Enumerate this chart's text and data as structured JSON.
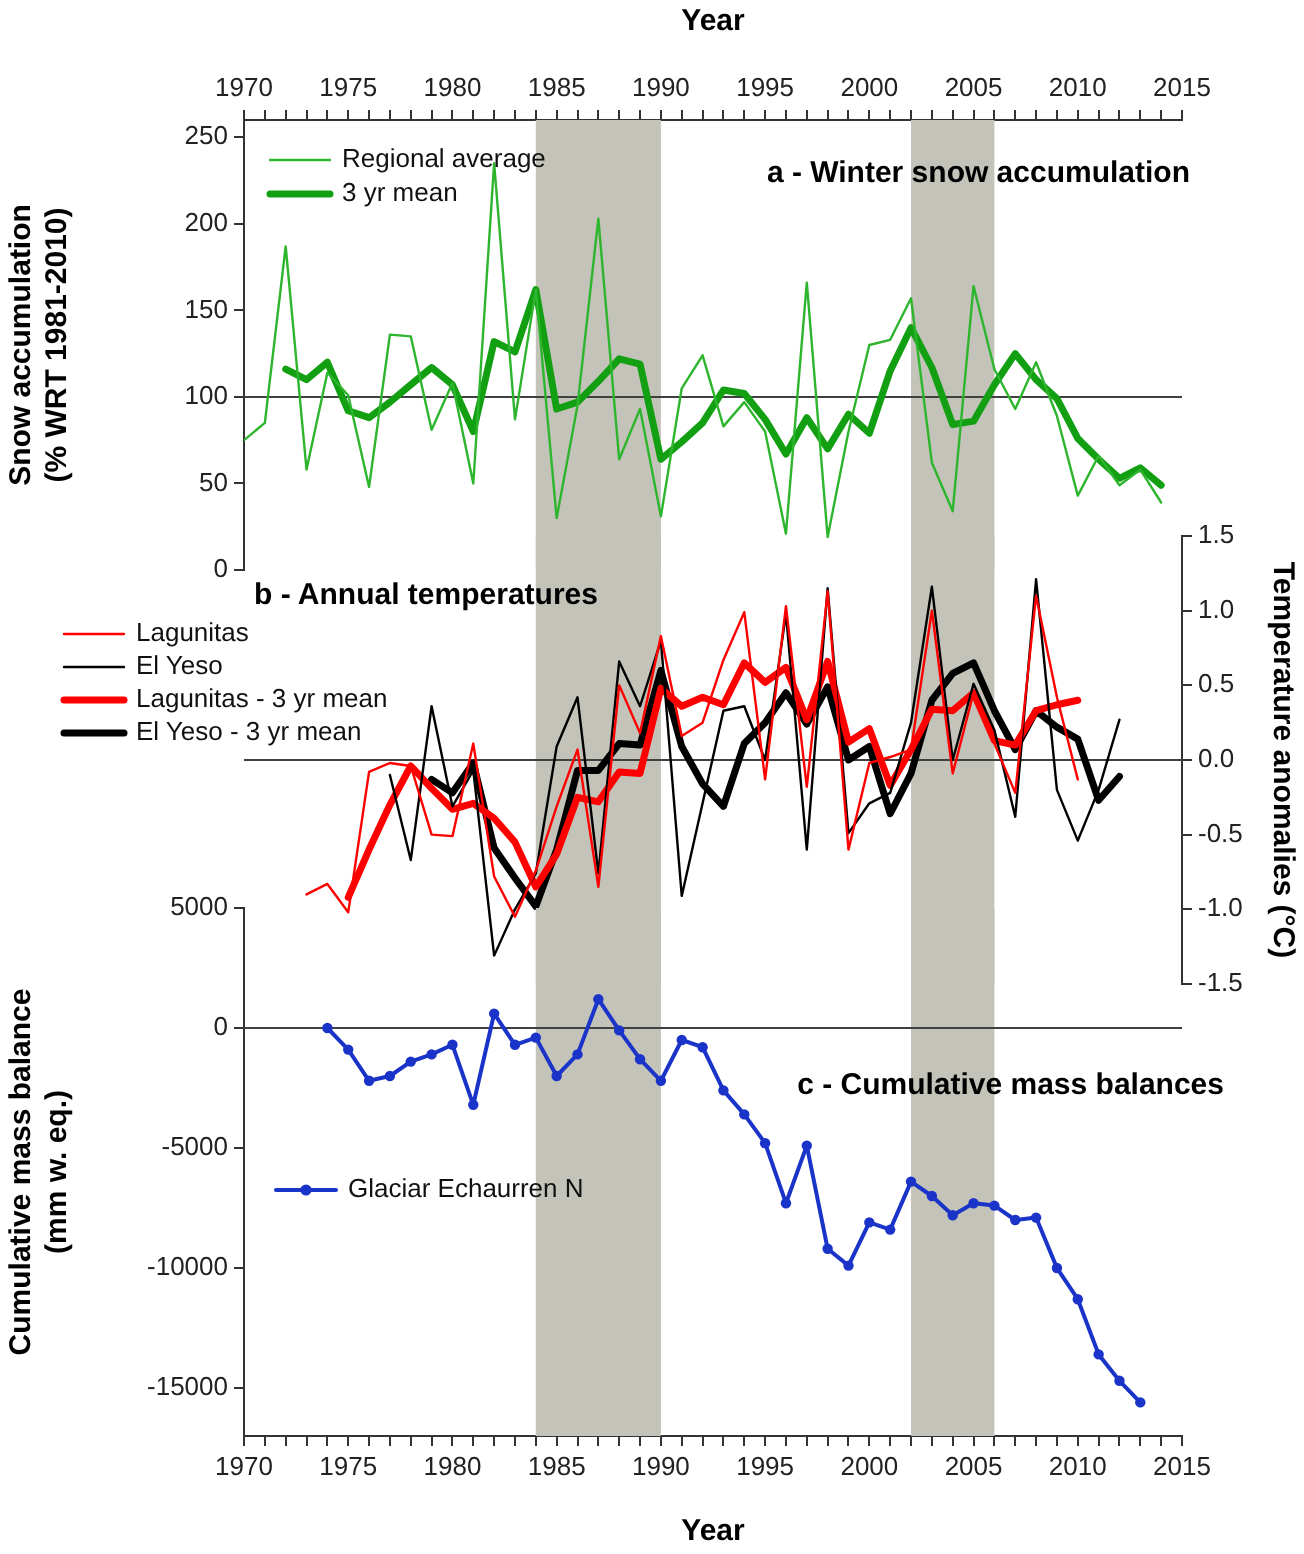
{
  "chart_data": [
    {
      "type": "line",
      "title": "a - Winter snow accumulation",
      "xlabel": "Year",
      "ylabel": "Snow accumulation\n(% WRT 1981-2010)",
      "legend": "top left",
      "marker": "none",
      "xlim": [
        1970,
        2015
      ],
      "xticks": [
        1970,
        {
          "value": 1971,
          "label": null
        },
        {
          "value": 1972,
          "label": null
        },
        {
          "value": 1973,
          "label": null
        },
        {
          "value": 1974,
          "label": null
        },
        1975,
        {
          "value": 1976,
          "label": null
        },
        {
          "value": 1977,
          "label": null
        },
        {
          "value": 1978,
          "label": null
        },
        {
          "value": 1979,
          "label": null
        },
        1980,
        {
          "value": 1981,
          "label": null
        },
        {
          "value": 1982,
          "label": null
        },
        {
          "value": 1983,
          "label": null
        },
        {
          "value": 1984,
          "label": null
        },
        1985,
        {
          "value": 1986,
          "label": null
        },
        {
          "value": 1987,
          "label": null
        },
        {
          "value": 1988,
          "label": null
        },
        {
          "value": 1989,
          "label": null
        },
        1990,
        {
          "value": 1991,
          "label": null
        },
        {
          "value": 1992,
          "label": null
        },
        {
          "value": 1993,
          "label": null
        },
        {
          "value": 1994,
          "label": null
        },
        1995,
        {
          "value": 1996,
          "label": null
        },
        {
          "value": 1997,
          "label": null
        },
        {
          "value": 1998,
          "label": null
        },
        {
          "value": 1999,
          "label": null
        },
        2000,
        {
          "value": 2001,
          "label": null
        },
        {
          "value": 2002,
          "label": null
        },
        {
          "value": 2003,
          "label": null
        },
        {
          "value": 2004,
          "label": null
        },
        2005,
        {
          "value": 2006,
          "label": null
        },
        {
          "value": 2007,
          "label": null
        },
        {
          "value": 2008,
          "label": null
        },
        {
          "value": 2009,
          "label": null
        },
        2010,
        {
          "value": 2011,
          "label": null
        },
        {
          "value": 2012,
          "label": null
        },
        {
          "value": 2013,
          "label": null
        },
        {
          "value": 2014,
          "label": null
        },
        2015
      ],
      "ylim": [
        0,
        260
      ],
      "yticks": [
        0,
        50,
        100,
        150,
        200,
        250
      ],
      "x": [
        1970,
        1971,
        1972,
        1973,
        1974,
        1975,
        1976,
        1977,
        1978,
        1979,
        1980,
        1981,
        1982,
        1983,
        1984,
        1985,
        1986,
        1987,
        1988,
        1989,
        1990,
        1991,
        1992,
        1993,
        1994,
        1995,
        1996,
        1997,
        1998,
        1999,
        2000,
        2001,
        2002,
        2003,
        2004,
        2005,
        2006,
        2007,
        2008,
        2009,
        2010,
        2011,
        2012,
        2013,
        2014
      ],
      "series": [
        {
          "name": "Regional average",
          "color": "#2db52d",
          "values": [
            75,
            85,
            187,
            58,
            114,
            101,
            48,
            136,
            135,
            81,
            108,
            50,
            235,
            87,
            162,
            30,
            95,
            203,
            64,
            93,
            31,
            105,
            124,
            83,
            97,
            80,
            21,
            166,
            19,
            80,
            130,
            133,
            157,
            62,
            34,
            164,
            116,
            93,
            120,
            89,
            43,
            66,
            49,
            58,
            39
          ]
        },
        {
          "name": "3 yr mean",
          "color": "#12a012",
          "values": [
            null,
            null,
            116,
            110,
            120,
            92,
            88,
            97,
            107,
            117,
            107,
            80,
            132,
            126,
            162,
            93,
            97,
            109,
            122,
            119,
            64,
            74,
            85,
            104,
            102,
            87,
            67,
            88,
            70,
            90,
            79,
            115,
            140,
            117,
            84,
            86,
            107,
            125,
            110,
            99,
            76,
            64,
            53,
            59,
            49
          ]
        }
      ],
      "ref_lines": [
        {
          "axis": "y",
          "value": 100,
          "color": "#404040"
        }
      ],
      "bands": [
        {
          "axis": "x",
          "from": 1984,
          "to": 1990,
          "color": "#c4c3b9"
        },
        {
          "axis": "x",
          "from": 2002,
          "to": 2006,
          "color": "#c4c3b9"
        }
      ]
    },
    {
      "type": "line",
      "title": "b - Annual temperatures",
      "y2label": "Temperature anomalies (°C)",
      "legend": "left",
      "marker": "none",
      "tick_labels": "y",
      "xlim": [
        1970,
        2015
      ],
      "y2lim": [
        -1.5,
        1.5
      ],
      "y2ticks": [
        {
          "value": -1.5,
          "label": "-1.5"
        },
        {
          "value": -1,
          "label": "-1.0"
        },
        {
          "value": -0.5,
          "label": "-0.5"
        },
        {
          "value": 0,
          "label": "0.0"
        },
        {
          "value": 0.5,
          "label": "0.5"
        },
        {
          "value": 1,
          "label": "1.0"
        },
        {
          "value": 1.5,
          "label": "1.5"
        }
      ],
      "x": [
        1973,
        1974,
        1975,
        1976,
        1977,
        1978,
        1979,
        1980,
        1981,
        1982,
        1983,
        1984,
        1985,
        1986,
        1987,
        1988,
        1989,
        1990,
        1991,
        1992,
        1993,
        1994,
        1995,
        1996,
        1997,
        1998,
        1999,
        2000,
        2001,
        2002,
        2003,
        2004,
        2005,
        2006,
        2007,
        2008,
        2009,
        2010,
        2011,
        2012
      ],
      "series": [
        {
          "name": "Lagunitas",
          "color": "#ff0000",
          "axis": "y2",
          "values": [
            -0.9,
            -0.83,
            -1.02,
            -0.08,
            -0.02,
            -0.04,
            -0.5,
            -0.51,
            0.11,
            -0.78,
            -1.05,
            -0.74,
            -0.31,
            0.07,
            -0.85,
            0.5,
            0.18,
            0.83,
            0.16,
            0.25,
            0.67,
            0.99,
            -0.13,
            1.03,
            -0.18,
            1.13,
            -0.6,
            -0.02,
            0.02,
            0.07,
            1.0,
            -0.09,
            0.45,
            0.11,
            -0.22,
            1.1,
            0.42,
            -0.13,
            null,
            null
          ]
        },
        {
          "name": "El Yeso",
          "color": "#000000",
          "axis": "y2",
          "values": [
            null,
            null,
            null,
            null,
            -0.1,
            -0.67,
            0.36,
            -0.31,
            -0.07,
            -1.31,
            -1.0,
            -0.76,
            0.09,
            0.42,
            -0.76,
            0.66,
            0.36,
            0.8,
            -0.91,
            -0.29,
            0.33,
            0.36,
            0.0,
            0.98,
            -0.6,
            1.15,
            -0.49,
            -0.29,
            -0.22,
            0.25,
            1.16,
            0.0,
            0.51,
            0.2,
            -0.38,
            1.21,
            -0.2,
            -0.54,
            -0.2,
            0.27
          ]
        },
        {
          "name": "Lagunitas - 3 yr mean",
          "color": "#ff0000",
          "axis": "y2",
          "values": [
            null,
            null,
            -0.92,
            -0.6,
            -0.3,
            -0.04,
            -0.19,
            -0.33,
            -0.29,
            -0.39,
            -0.55,
            -0.85,
            -0.63,
            -0.25,
            -0.28,
            -0.08,
            -0.09,
            0.48,
            0.36,
            0.42,
            0.37,
            0.65,
            0.52,
            0.62,
            0.27,
            0.66,
            0.12,
            0.21,
            -0.17,
            0.07,
            0.34,
            0.33,
            0.45,
            0.13,
            0.1,
            0.33,
            0.37,
            0.4,
            null,
            null
          ]
        },
        {
          "name": "El Yeso - 3 yr mean",
          "color": "#000000",
          "axis": "y2",
          "values": [
            null,
            null,
            null,
            null,
            null,
            null,
            -0.13,
            -0.22,
            -0.02,
            -0.59,
            -0.79,
            -0.98,
            -0.6,
            -0.07,
            -0.07,
            0.11,
            0.1,
            0.6,
            0.09,
            -0.16,
            -0.31,
            0.11,
            0.25,
            0.45,
            0.24,
            0.49,
            0.0,
            0.09,
            -0.36,
            -0.09,
            0.4,
            0.58,
            0.65,
            0.33,
            0.07,
            0.33,
            0.22,
            0.14,
            -0.27,
            -0.11
          ]
        }
      ],
      "ref_lines": [
        {
          "axis": "y2",
          "value": 0,
          "color": "#404040"
        }
      ],
      "bands": [
        {
          "axis": "x",
          "from": 1984,
          "to": 1990,
          "color": "#c4c3b9"
        },
        {
          "axis": "x",
          "from": 2002,
          "to": 2006,
          "color": "#c4c3b9"
        }
      ]
    },
    {
      "type": "line",
      "title": "c - Cumulative mass balances",
      "xlabel": "Year",
      "ylabel": "Cumulative mass balance\n(mm w. eq.)",
      "legend": "left",
      "marker": "circle",
      "xlim": [
        1970,
        2015
      ],
      "xticks": [
        1970,
        {
          "value": 1971,
          "label": null
        },
        {
          "value": 1972,
          "label": null
        },
        {
          "value": 1973,
          "label": null
        },
        {
          "value": 1974,
          "label": null
        },
        1975,
        {
          "value": 1976,
          "label": null
        },
        {
          "value": 1977,
          "label": null
        },
        {
          "value": 1978,
          "label": null
        },
        {
          "value": 1979,
          "label": null
        },
        1980,
        {
          "value": 1981,
          "label": null
        },
        {
          "value": 1982,
          "label": null
        },
        {
          "value": 1983,
          "label": null
        },
        {
          "value": 1984,
          "label": null
        },
        1985,
        {
          "value": 1986,
          "label": null
        },
        {
          "value": 1987,
          "label": null
        },
        {
          "value": 1988,
          "label": null
        },
        {
          "value": 1989,
          "label": null
        },
        1990,
        {
          "value": 1991,
          "label": null
        },
        {
          "value": 1992,
          "label": null
        },
        {
          "value": 1993,
          "label": null
        },
        {
          "value": 1994,
          "label": null
        },
        1995,
        {
          "value": 1996,
          "label": null
        },
        {
          "value": 1997,
          "label": null
        },
        {
          "value": 1998,
          "label": null
        },
        {
          "value": 1999,
          "label": null
        },
        2000,
        {
          "value": 2001,
          "label": null
        },
        {
          "value": 2002,
          "label": null
        },
        {
          "value": 2003,
          "label": null
        },
        {
          "value": 2004,
          "label": null
        },
        2005,
        {
          "value": 2006,
          "label": null
        },
        {
          "value": 2007,
          "label": null
        },
        {
          "value": 2008,
          "label": null
        },
        {
          "value": 2009,
          "label": null
        },
        2010,
        {
          "value": 2011,
          "label": null
        },
        {
          "value": 2012,
          "label": null
        },
        {
          "value": 2013,
          "label": null
        },
        {
          "value": 2014,
          "label": null
        },
        2015
      ],
      "ylim": [
        -17000,
        5000
      ],
      "yticks": [
        -15000,
        -10000,
        -5000,
        0,
        5000
      ],
      "x": [
        1974,
        1975,
        1976,
        1977,
        1978,
        1979,
        1980,
        1981,
        1982,
        1983,
        1984,
        1985,
        1986,
        1987,
        1988,
        1989,
        1990,
        1991,
        1992,
        1993,
        1994,
        1995,
        1996,
        1997,
        1998,
        1999,
        2000,
        2001,
        2002,
        2003,
        2004,
        2005,
        2006,
        2007,
        2008,
        2009,
        2010,
        2011,
        2012,
        2013
      ],
      "series": [
        {
          "name": "Glaciar Echaurren N",
          "color": "#1a33c8",
          "values": [
            0,
            -900,
            -2200,
            -2000,
            -1400,
            -1100,
            -700,
            -3200,
            600,
            -700,
            -400,
            -2000,
            -1100,
            1200,
            -100,
            -1300,
            -2200,
            -500,
            -800,
            -2600,
            -3600,
            -4800,
            -7300,
            -4900,
            -9200,
            -9900,
            -8100,
            -8400,
            -6400,
            -7000,
            -7800,
            -7300,
            -7400,
            -8000,
            -7900,
            -10000,
            -11300,
            -13600,
            -14700,
            -15600
          ]
        }
      ],
      "ref_lines": [
        {
          "axis": "y",
          "value": 0,
          "color": "#404040"
        }
      ],
      "bands": [
        {
          "axis": "x",
          "from": 1984,
          "to": 1990,
          "color": "#c4c3b9"
        },
        {
          "axis": "x",
          "from": 2002,
          "to": 2006,
          "color": "#c4c3b9"
        }
      ]
    }
  ]
}
